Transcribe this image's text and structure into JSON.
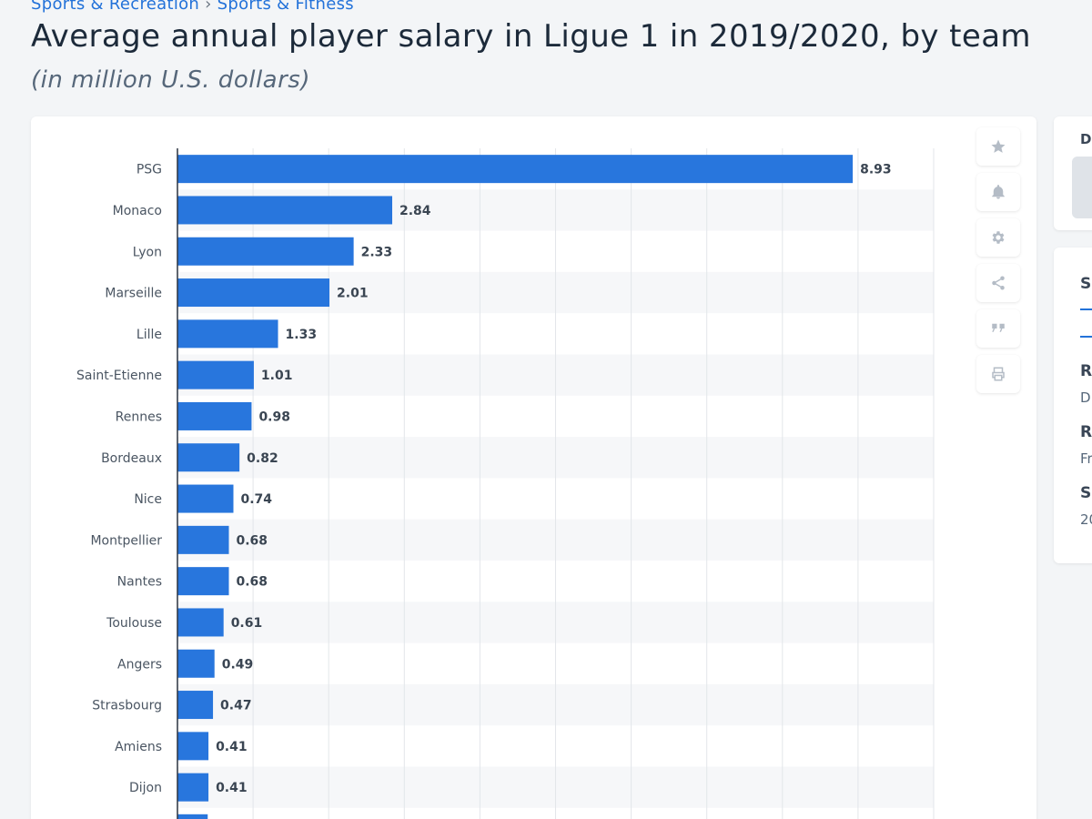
{
  "breadcrumb": {
    "item1": "Sports & Recreation",
    "separator": "›",
    "item2": "Sports & Fitness"
  },
  "header": {
    "title": "Average annual player salary in Ligue 1 in 2019/2020, by team",
    "subtitle": "(in million U.S. dollars)"
  },
  "toolbar": {
    "items": [
      "star-icon",
      "bell-icon",
      "gear-icon",
      "share-icon",
      "quote-icon",
      "print-icon"
    ]
  },
  "side_panel": {
    "top_label": "D",
    "tab_label": "S",
    "rows": [
      {
        "key": "R",
        "value": "D"
      },
      {
        "key": "R",
        "value": "Fr"
      },
      {
        "key": "S",
        "value": "20"
      }
    ]
  },
  "colors": {
    "bar": "#2876dd",
    "accent": "#2372d9",
    "grid": "#e3e6ea",
    "band": "#f6f7f9"
  },
  "chart_data": {
    "type": "bar",
    "orientation": "horizontal",
    "title": "Average annual player salary in Ligue 1 in 2019/2020, by team",
    "ylabel": "in million U.S. dollars",
    "xlim": [
      0,
      10
    ],
    "grid": true,
    "categories": [
      "PSG",
      "Monaco",
      "Lyon",
      "Marseille",
      "Lille",
      "Saint-Etienne",
      "Rennes",
      "Bordeaux",
      "Nice",
      "Montpellier",
      "Nantes",
      "Toulouse",
      "Angers",
      "Strasbourg",
      "Amiens",
      "Dijon"
    ],
    "values": [
      8.93,
      2.84,
      2.33,
      2.01,
      1.33,
      1.01,
      0.98,
      0.82,
      0.74,
      0.68,
      0.68,
      0.61,
      0.49,
      0.47,
      0.41,
      0.41
    ],
    "value_labels": [
      "8.93",
      "2.84",
      "2.33",
      "2.01",
      "1.33",
      "1.01",
      "0.98",
      "0.82",
      "0.74",
      "0.68",
      "0.68",
      "0.61",
      "0.49",
      "0.47",
      "0.41",
      "0.41"
    ]
  }
}
